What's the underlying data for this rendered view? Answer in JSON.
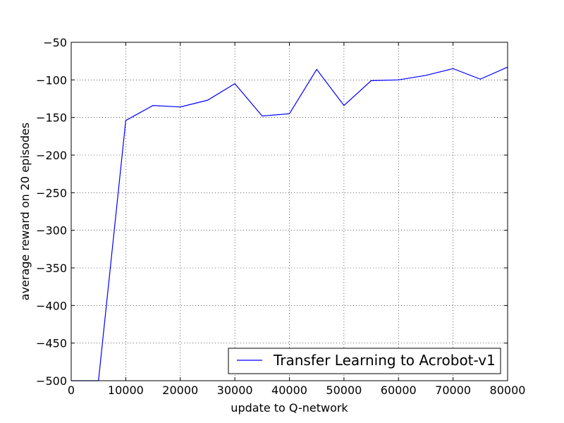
{
  "chart_data": {
    "type": "line",
    "title": "",
    "xlabel": "update to Q-network",
    "ylabel": "average reward on 20 episodes",
    "xlim": [
      0,
      80000
    ],
    "ylim": [
      -500,
      -50
    ],
    "xticks": [
      0,
      10000,
      20000,
      30000,
      40000,
      50000,
      60000,
      70000,
      80000
    ],
    "yticks": [
      -500,
      -450,
      -400,
      -350,
      -300,
      -250,
      -200,
      -150,
      -100,
      -50
    ],
    "x_tick_labels": [
      "0",
      "10000",
      "20000",
      "30000",
      "40000",
      "50000",
      "60000",
      "70000",
      "80000"
    ],
    "y_tick_labels": [
      "−500",
      "−450",
      "−400",
      "−350",
      "−300",
      "−250",
      "−200",
      "−150",
      "−100",
      "−50"
    ],
    "grid": true,
    "grid_style": "dotted",
    "legend_position": "lower-right",
    "series": [
      {
        "name": "Transfer Learning to Acrobot-v1",
        "color": "#0000ff",
        "x": [
          0,
          5000,
          10000,
          15000,
          20000,
          25000,
          30000,
          35000,
          40000,
          45000,
          50000,
          55000,
          60000,
          65000,
          70000,
          75000,
          80000
        ],
        "y": [
          -500,
          -500,
          -154,
          -134,
          -136,
          -127,
          -105,
          -148,
          -145,
          -86,
          -134,
          -101,
          -100,
          -94,
          -85,
          -99,
          -83
        ]
      }
    ]
  }
}
